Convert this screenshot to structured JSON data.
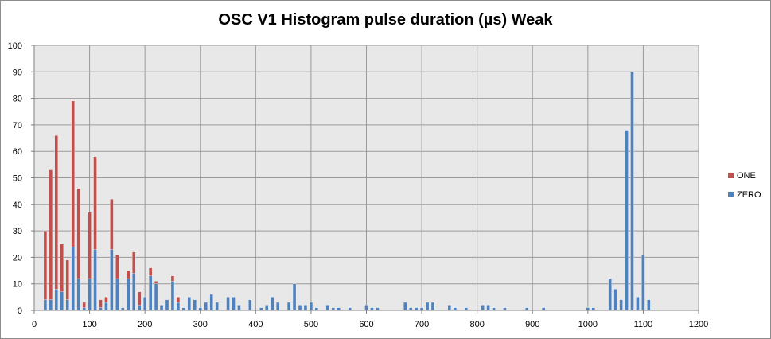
{
  "chart_data": {
    "type": "bar",
    "stacked": true,
    "title": "OSC V1 Histogram pulse duration (µs) Weak",
    "xlabel": "",
    "ylabel": "",
    "xlim": [
      0,
      1200
    ],
    "ylim": [
      0,
      100
    ],
    "x_ticks": [
      0,
      100,
      200,
      300,
      400,
      500,
      600,
      700,
      800,
      900,
      1000,
      1100,
      1200
    ],
    "y_ticks": [
      0,
      10,
      20,
      30,
      40,
      50,
      60,
      70,
      80,
      90,
      100
    ],
    "grid": true,
    "legend_position": "right",
    "x": [
      20,
      30,
      40,
      50,
      60,
      70,
      80,
      90,
      100,
      110,
      120,
      130,
      140,
      150,
      160,
      170,
      180,
      190,
      200,
      210,
      220,
      230,
      240,
      250,
      260,
      270,
      280,
      290,
      300,
      310,
      320,
      330,
      350,
      360,
      370,
      390,
      410,
      420,
      430,
      440,
      460,
      470,
      480,
      490,
      500,
      510,
      530,
      540,
      550,
      570,
      600,
      610,
      620,
      670,
      680,
      690,
      700,
      710,
      720,
      750,
      760,
      780,
      810,
      820,
      830,
      850,
      890,
      920,
      1000,
      1010,
      1040,
      1050,
      1060,
      1070,
      1080,
      1090,
      1100,
      1110
    ],
    "series": [
      {
        "name": "ZERO",
        "color": "#4f81bd",
        "values": [
          4,
          4,
          8,
          7,
          4,
          24,
          12,
          1,
          12,
          23,
          1,
          3,
          23,
          12,
          1,
          12,
          14,
          2,
          5,
          13,
          10,
          2,
          4,
          11,
          3,
          1,
          5,
          4,
          1,
          3,
          6,
          3,
          5,
          5,
          2,
          4,
          1,
          2,
          5,
          3,
          3,
          10,
          2,
          2,
          3,
          1,
          2,
          1,
          1,
          1,
          2,
          1,
          1,
          3,
          1,
          1,
          1,
          3,
          3,
          2,
          1,
          1,
          2,
          2,
          1,
          1,
          1,
          1,
          1,
          1,
          12,
          8,
          4,
          68,
          90,
          5,
          21,
          4
        ]
      },
      {
        "name": "ONE",
        "color": "#c0504d",
        "values": [
          26,
          49,
          58,
          18,
          15,
          55,
          34,
          2,
          25,
          35,
          3,
          2,
          19,
          9,
          0,
          3,
          8,
          5,
          0,
          3,
          1,
          0,
          0,
          2,
          2,
          0,
          0,
          0,
          0,
          0,
          0,
          0,
          0,
          0,
          0,
          0,
          0,
          0,
          0,
          0,
          0,
          0,
          0,
          0,
          0,
          0,
          0,
          0,
          0,
          0,
          0,
          0,
          0,
          0,
          0,
          0,
          0,
          0,
          0,
          0,
          0,
          0,
          0,
          0,
          0,
          0,
          0,
          0,
          0,
          0,
          0,
          0,
          0,
          0,
          0,
          0,
          0,
          0
        ]
      }
    ]
  }
}
